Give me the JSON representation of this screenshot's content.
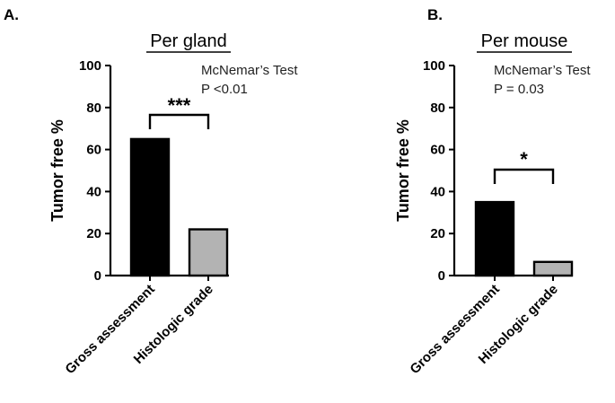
{
  "chart_data": [
    {
      "type": "bar",
      "panel": "A.",
      "title": "Per gland",
      "ylabel": "Tumor free %",
      "xlabel": "",
      "ylim": [
        0,
        100
      ],
      "yticks": [
        0,
        20,
        40,
        60,
        80,
        100
      ],
      "categories": [
        "Gross assessment",
        "Histologic grade"
      ],
      "values": [
        65,
        22
      ],
      "bar_colors": [
        "#000000",
        "#b3b3b3"
      ],
      "annotation": {
        "test": "McNemar’s Test",
        "p": "P <0.01",
        "significance": "***"
      }
    },
    {
      "type": "bar",
      "panel": "B.",
      "title": "Per mouse",
      "ylabel": "Tumor free %",
      "xlabel": "",
      "ylim": [
        0,
        100
      ],
      "yticks": [
        0,
        20,
        40,
        60,
        80,
        100
      ],
      "categories": [
        "Gross assessment",
        "Histologic grade"
      ],
      "values": [
        35,
        6.5
      ],
      "bar_colors": [
        "#000000",
        "#b3b3b3"
      ],
      "annotation": {
        "test": "McNemar’s Test",
        "p": "P = 0.03",
        "significance": "*"
      }
    }
  ]
}
